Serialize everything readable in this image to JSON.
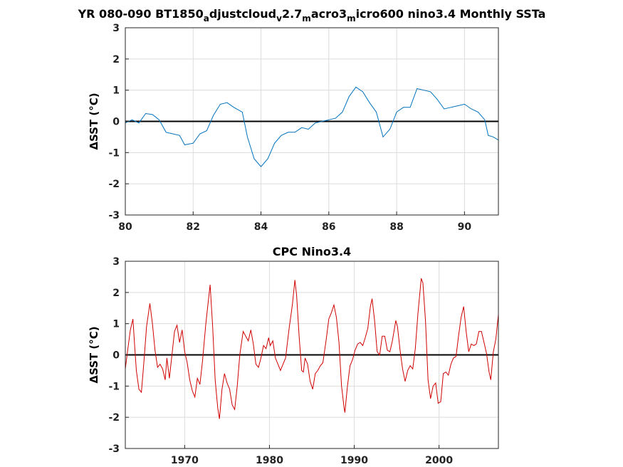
{
  "chart_data": [
    {
      "type": "line",
      "title": "YR 080-090 BT1850_adjustcloud_v2.7_macro3_micro600 nino3.4 Monthly SSTa",
      "title_parts": [
        {
          "t": "YR 080-090 BT1850",
          "sub": false
        },
        {
          "t": "a",
          "sub": true
        },
        {
          "t": "djustcloud",
          "sub": false
        },
        {
          "t": "v",
          "sub": true
        },
        {
          "t": "2.7",
          "sub": false
        },
        {
          "t": "m",
          "sub": true
        },
        {
          "t": "acro3",
          "sub": false
        },
        {
          "t": "m",
          "sub": true
        },
        {
          "t": "icro600 nino3.4 Monthly SSTa",
          "sub": false
        }
      ],
      "xlabel": "",
      "ylabel": "ΔSST (°C)",
      "xlim": [
        80,
        91
      ],
      "ylim": [
        -3,
        3
      ],
      "xticks": [
        80,
        82,
        84,
        86,
        88,
        90
      ],
      "xtick_labels": [
        "80",
        "82",
        "84",
        "86",
        "88",
        "90"
      ],
      "yticks": [
        -3,
        -2,
        -1,
        0,
        1,
        2,
        3
      ],
      "ytick_labels": [
        "-3",
        "-2",
        "-1",
        "0",
        "1",
        "2",
        "3"
      ],
      "grid": true,
      "zero_line": true,
      "series": [
        {
          "color": "#0072bd",
          "points": [
            [
              80.0,
              -0.05
            ],
            [
              80.2,
              0.05
            ],
            [
              80.4,
              -0.05
            ],
            [
              80.6,
              0.25
            ],
            [
              80.8,
              0.22
            ],
            [
              81.0,
              0.05
            ],
            [
              81.2,
              -0.35
            ],
            [
              81.4,
              -0.4
            ],
            [
              81.6,
              -0.45
            ],
            [
              81.75,
              -0.75
            ],
            [
              82.0,
              -0.7
            ],
            [
              82.2,
              -0.4
            ],
            [
              82.4,
              -0.3
            ],
            [
              82.6,
              0.2
            ],
            [
              82.8,
              0.55
            ],
            [
              83.0,
              0.6
            ],
            [
              83.2,
              0.45
            ],
            [
              83.45,
              0.3
            ],
            [
              83.6,
              -0.5
            ],
            [
              83.8,
              -1.2
            ],
            [
              84.0,
              -1.45
            ],
            [
              84.2,
              -1.2
            ],
            [
              84.4,
              -0.7
            ],
            [
              84.6,
              -0.45
            ],
            [
              84.8,
              -0.35
            ],
            [
              85.0,
              -0.35
            ],
            [
              85.2,
              -0.2
            ],
            [
              85.4,
              -0.25
            ],
            [
              85.6,
              -0.05
            ],
            [
              85.8,
              0.0
            ],
            [
              86.0,
              0.05
            ],
            [
              86.2,
              0.1
            ],
            [
              86.4,
              0.3
            ],
            [
              86.6,
              0.8
            ],
            [
              86.8,
              1.1
            ],
            [
              87.0,
              0.95
            ],
            [
              87.2,
              0.6
            ],
            [
              87.4,
              0.3
            ],
            [
              87.6,
              -0.5
            ],
            [
              87.8,
              -0.25
            ],
            [
              88.0,
              0.3
            ],
            [
              88.2,
              0.45
            ],
            [
              88.4,
              0.45
            ],
            [
              88.6,
              1.05
            ],
            [
              88.8,
              1.0
            ],
            [
              89.0,
              0.95
            ],
            [
              89.2,
              0.7
            ],
            [
              89.4,
              0.4
            ],
            [
              89.6,
              0.45
            ],
            [
              89.8,
              0.5
            ],
            [
              90.0,
              0.55
            ],
            [
              90.2,
              0.4
            ],
            [
              90.4,
              0.3
            ],
            [
              90.6,
              0.05
            ],
            [
              90.7,
              -0.45
            ],
            [
              90.85,
              -0.5
            ],
            [
              91.0,
              -0.6
            ]
          ]
        }
      ]
    },
    {
      "type": "line",
      "title": "CPC Nino3.4",
      "xlabel": "",
      "ylabel": "ΔSST (°C)",
      "xlim": [
        1963,
        2007
      ],
      "ylim": [
        -3,
        3
      ],
      "xticks": [
        1970,
        1980,
        1990,
        2000
      ],
      "xtick_labels": [
        "1970",
        "1980",
        "1990",
        "2000"
      ],
      "yticks": [
        -3,
        -2,
        -1,
        0,
        1,
        2,
        3
      ],
      "ytick_labels": [
        "-3",
        "-2",
        "-1",
        "0",
        "1",
        "2",
        "3"
      ],
      "grid": true,
      "zero_line": true,
      "series": [
        {
          "color": "#d00000",
          "points": [
            [
              1963.0,
              -0.45
            ],
            [
              1963.3,
              0.2
            ],
            [
              1963.6,
              0.8
            ],
            [
              1963.9,
              1.15
            ],
            [
              1964.1,
              0.3
            ],
            [
              1964.3,
              -0.5
            ],
            [
              1964.6,
              -1.1
            ],
            [
              1964.9,
              -1.2
            ],
            [
              1965.2,
              -0.2
            ],
            [
              1965.5,
              0.9
            ],
            [
              1965.9,
              1.65
            ],
            [
              1966.2,
              1.0
            ],
            [
              1966.5,
              0.15
            ],
            [
              1966.8,
              -0.4
            ],
            [
              1967.1,
              -0.3
            ],
            [
              1967.4,
              -0.45
            ],
            [
              1967.7,
              -0.8
            ],
            [
              1967.9,
              -0.1
            ],
            [
              1968.2,
              -0.75
            ],
            [
              1968.5,
              0.0
            ],
            [
              1968.8,
              0.75
            ],
            [
              1969.1,
              0.95
            ],
            [
              1969.4,
              0.4
            ],
            [
              1969.7,
              0.8
            ],
            [
              1970.0,
              0.1
            ],
            [
              1970.3,
              -0.25
            ],
            [
              1970.6,
              -0.8
            ],
            [
              1970.9,
              -1.15
            ],
            [
              1971.2,
              -1.35
            ],
            [
              1971.5,
              -0.75
            ],
            [
              1971.8,
              -0.95
            ],
            [
              1972.1,
              -0.2
            ],
            [
              1972.5,
              1.0
            ],
            [
              1972.9,
              2.0
            ],
            [
              1973.0,
              2.25
            ],
            [
              1973.3,
              0.9
            ],
            [
              1973.6,
              -0.8
            ],
            [
              1973.9,
              -1.7
            ],
            [
              1974.1,
              -2.05
            ],
            [
              1974.4,
              -1.1
            ],
            [
              1974.7,
              -0.6
            ],
            [
              1975.0,
              -0.9
            ],
            [
              1975.3,
              -1.1
            ],
            [
              1975.6,
              -1.6
            ],
            [
              1975.9,
              -1.75
            ],
            [
              1976.2,
              -1.0
            ],
            [
              1976.5,
              0.0
            ],
            [
              1976.9,
              0.75
            ],
            [
              1977.2,
              0.6
            ],
            [
              1977.5,
              0.45
            ],
            [
              1977.8,
              0.8
            ],
            [
              1978.1,
              0.35
            ],
            [
              1978.4,
              -0.3
            ],
            [
              1978.7,
              -0.4
            ],
            [
              1979.0,
              -0.1
            ],
            [
              1979.3,
              0.3
            ],
            [
              1979.6,
              0.2
            ],
            [
              1979.9,
              0.55
            ],
            [
              1980.1,
              0.3
            ],
            [
              1980.4,
              0.45
            ],
            [
              1980.7,
              -0.1
            ],
            [
              1981.0,
              -0.3
            ],
            [
              1981.3,
              -0.5
            ],
            [
              1981.6,
              -0.3
            ],
            [
              1981.9,
              -0.1
            ],
            [
              1982.3,
              0.8
            ],
            [
              1982.7,
              1.6
            ],
            [
              1983.0,
              2.4
            ],
            [
              1983.2,
              1.9
            ],
            [
              1983.5,
              0.6
            ],
            [
              1983.8,
              -0.5
            ],
            [
              1984.0,
              -0.55
            ],
            [
              1984.2,
              -0.1
            ],
            [
              1984.5,
              -0.3
            ],
            [
              1984.8,
              -0.85
            ],
            [
              1985.1,
              -1.1
            ],
            [
              1985.4,
              -0.6
            ],
            [
              1985.7,
              -0.5
            ],
            [
              1986.0,
              -0.35
            ],
            [
              1986.3,
              -0.25
            ],
            [
              1986.7,
              0.5
            ],
            [
              1987.0,
              1.15
            ],
            [
              1987.3,
              1.35
            ],
            [
              1987.6,
              1.6
            ],
            [
              1987.9,
              1.2
            ],
            [
              1988.2,
              0.4
            ],
            [
              1988.5,
              -1.0
            ],
            [
              1988.8,
              -1.7
            ],
            [
              1988.9,
              -1.85
            ],
            [
              1989.2,
              -1.0
            ],
            [
              1989.5,
              -0.35
            ],
            [
              1989.8,
              -0.15
            ],
            [
              1990.1,
              0.15
            ],
            [
              1990.4,
              0.35
            ],
            [
              1990.7,
              0.4
            ],
            [
              1991.0,
              0.3
            ],
            [
              1991.3,
              0.55
            ],
            [
              1991.6,
              0.85
            ],
            [
              1991.9,
              1.55
            ],
            [
              1992.1,
              1.8
            ],
            [
              1992.4,
              1.1
            ],
            [
              1992.7,
              0.1
            ],
            [
              1993.0,
              0.0
            ],
            [
              1993.3,
              0.6
            ],
            [
              1993.6,
              0.6
            ],
            [
              1993.9,
              0.15
            ],
            [
              1994.2,
              0.1
            ],
            [
              1994.5,
              0.45
            ],
            [
              1994.9,
              1.1
            ],
            [
              1995.1,
              0.9
            ],
            [
              1995.4,
              0.15
            ],
            [
              1995.7,
              -0.45
            ],
            [
              1996.0,
              -0.85
            ],
            [
              1996.3,
              -0.5
            ],
            [
              1996.6,
              -0.35
            ],
            [
              1996.9,
              -0.45
            ],
            [
              1997.2,
              0.2
            ],
            [
              1997.5,
              1.3
            ],
            [
              1997.9,
              2.45
            ],
            [
              1998.1,
              2.3
            ],
            [
              1998.4,
              1.1
            ],
            [
              1998.7,
              -0.8
            ],
            [
              1999.0,
              -1.4
            ],
            [
              1999.3,
              -1.0
            ],
            [
              1999.6,
              -0.9
            ],
            [
              1999.9,
              -1.55
            ],
            [
              2000.2,
              -1.5
            ],
            [
              2000.5,
              -0.6
            ],
            [
              2000.8,
              -0.55
            ],
            [
              2001.1,
              -0.65
            ],
            [
              2001.4,
              -0.3
            ],
            [
              2001.7,
              -0.1
            ],
            [
              2002.0,
              -0.05
            ],
            [
              2002.3,
              0.6
            ],
            [
              2002.6,
              1.2
            ],
            [
              2002.9,
              1.55
            ],
            [
              2003.2,
              0.75
            ],
            [
              2003.5,
              0.1
            ],
            [
              2003.8,
              0.35
            ],
            [
              2004.1,
              0.3
            ],
            [
              2004.4,
              0.35
            ],
            [
              2004.7,
              0.75
            ],
            [
              2005.0,
              0.75
            ],
            [
              2005.3,
              0.4
            ],
            [
              2005.6,
              0.05
            ],
            [
              2005.9,
              -0.55
            ],
            [
              2006.1,
              -0.8
            ],
            [
              2006.4,
              0.1
            ],
            [
              2006.7,
              0.5
            ],
            [
              2007.0,
              1.3
            ]
          ]
        }
      ]
    }
  ]
}
